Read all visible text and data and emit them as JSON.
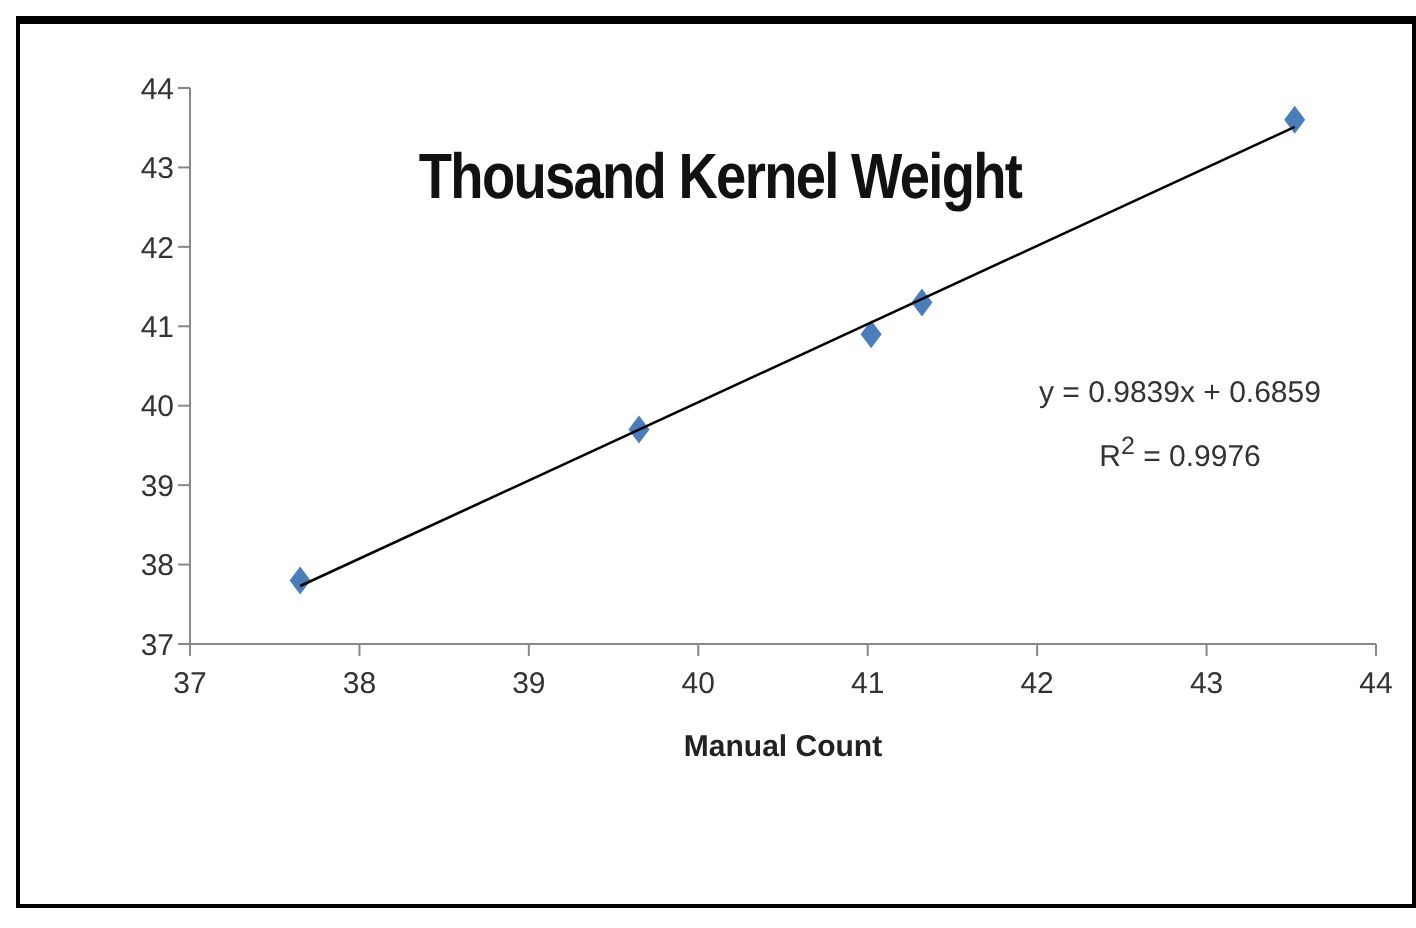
{
  "chart_data": {
    "type": "scatter",
    "title": "Thousand Kernel Weight",
    "xlabel": "Manual Count",
    "x": [
      37.65,
      39.65,
      41.02,
      41.32,
      43.52
    ],
    "series": [
      {
        "type": "scatter",
        "color": "#4a7ebb",
        "marker": "diamond",
        "values": [
          37.8,
          39.7,
          40.9,
          41.3,
          43.6
        ]
      },
      {
        "type": "line",
        "color": "#000000",
        "marker": "none",
        "x": [
          37.65,
          43.52
        ],
        "values": [
          37.73,
          43.51
        ]
      }
    ],
    "xlim": [
      37,
      44
    ],
    "xticks": [
      37,
      38,
      39,
      40,
      41,
      42,
      43,
      44
    ],
    "ylim": [
      37,
      44
    ],
    "yticks": [
      37,
      38,
      39,
      40,
      41,
      42,
      43,
      44
    ],
    "grid": false,
    "legend": false,
    "annotations": [
      "y = 0.9839x + 0.6859",
      "R$^{2}$ = 0.9976"
    ]
  }
}
